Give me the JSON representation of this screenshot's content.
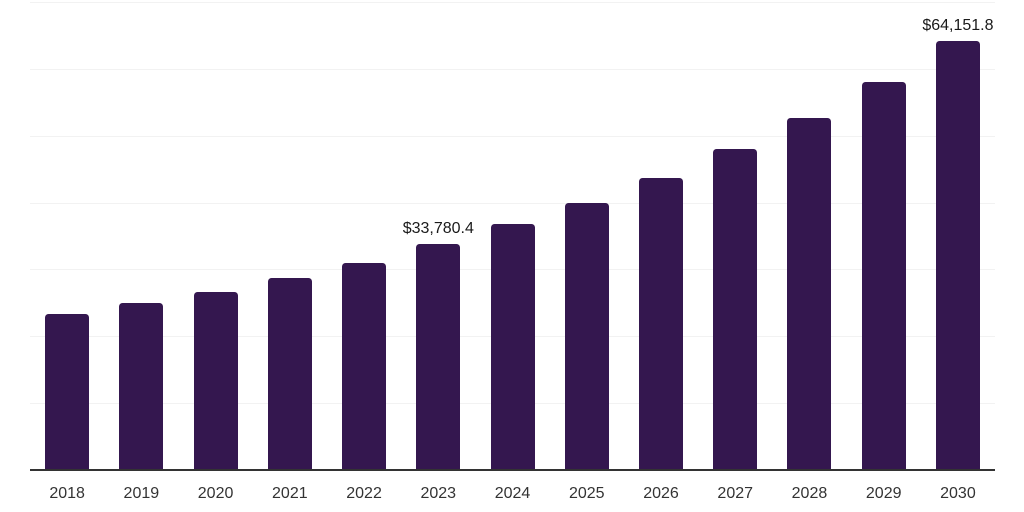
{
  "chart_data": {
    "type": "bar",
    "title": "",
    "xlabel": "",
    "ylabel": "",
    "categories": [
      "2018",
      "2019",
      "2020",
      "2021",
      "2022",
      "2023",
      "2024",
      "2025",
      "2026",
      "2027",
      "2028",
      "2029",
      "2030"
    ],
    "values": [
      23400,
      25000,
      26600,
      28700,
      31000,
      33780.4,
      36800,
      39900,
      43700,
      48000,
      52700,
      58000,
      64151.8
    ],
    "point_labels": [
      "",
      "",
      "",
      "",
      "",
      "$33,780.4",
      "",
      "",
      "",
      "",
      "",
      "",
      "$64,151.8"
    ],
    "ylim": [
      0,
      70000
    ],
    "gridline_interval": 10000,
    "grid": "horizontal",
    "legend": "none",
    "colors": {
      "bar": "#34174F",
      "value_label": "#1a1a1a",
      "axis_tick_label": "#333333",
      "gridline": "#f2f2f2",
      "axis_line": "#333333",
      "background": "#ffffff"
    }
  }
}
